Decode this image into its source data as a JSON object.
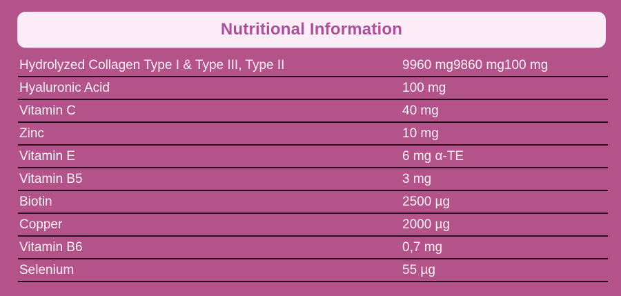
{
  "header": {
    "title": "Nutritional Information"
  },
  "colors": {
    "background": "#b35389",
    "header_bg": "#fcedf8",
    "header_text": "#af4f9c",
    "row_text": "#f9f0f6",
    "separator": "#2a0b1e"
  },
  "rows": [
    {
      "label": "Hydrolyzed Collagen Type I & Type III, Type II",
      "value": "9960 mg9860 mg100 mg"
    },
    {
      "label": "Hyaluronic Acid",
      "value": "100 mg"
    },
    {
      "label": "Vitamin C",
      "value": "40 mg"
    },
    {
      "label": "Zinc",
      "value": "10 mg"
    },
    {
      "label": "Vitamin E",
      "value": "6 mg α-TE"
    },
    {
      "label": "Vitamin B5",
      "value": "3 mg"
    },
    {
      "label": "Biotin",
      "value": "2500 µg"
    },
    {
      "label": "Copper",
      "value": "2000 µg"
    },
    {
      "label": "Vitamin B6",
      "value": "0,7 mg"
    },
    {
      "label": "Selenium",
      "value": "55 µg"
    }
  ]
}
